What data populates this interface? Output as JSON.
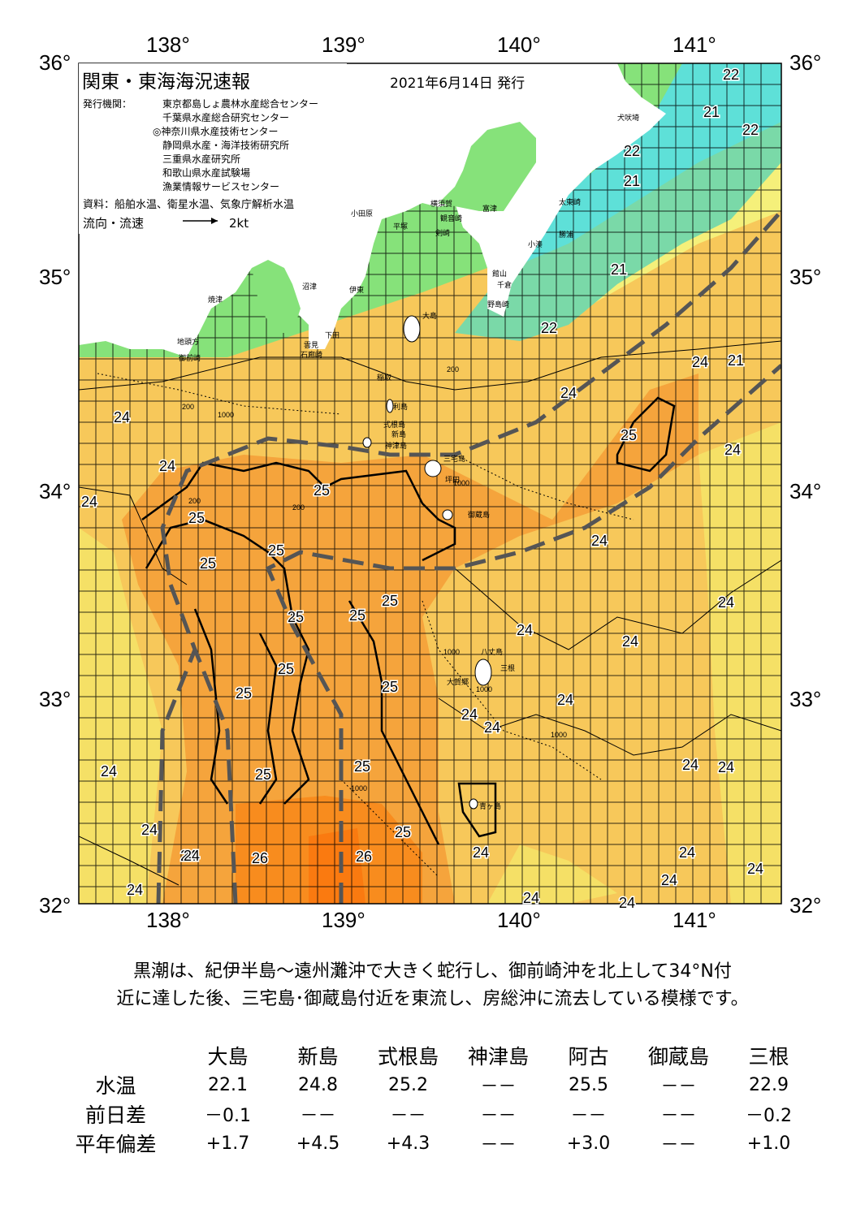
{
  "map": {
    "title": "関東・東海海況速報",
    "date": "2021年6月14日 発行",
    "issuers_label": "発行機関：",
    "issuers": [
      "東京都島しょ農林水産総合センター",
      "千葉県水産総合研究センター",
      "◎神奈川県水産技術センター",
      "静岡県水産・海洋技術研究所",
      "三重県水産研究所",
      "和歌山県水産試験場",
      "漁業情報サービスセンター"
    ],
    "source": "資料：船舶水温、衛星水温、気象庁解析水温",
    "flow_label": "流向・流速",
    "flow_scale": "2kt",
    "lon_labels": [
      "138°",
      "139°",
      "140°",
      "141°"
    ],
    "lat_labels": [
      "36°",
      "35°",
      "34°",
      "33°",
      "32°"
    ],
    "place_names": [
      "犬吠埼",
      "太東崎",
      "勝浦",
      "小湊",
      "館山",
      "千倉",
      "野島崎",
      "富津",
      "横須賀",
      "観音崎",
      "剣崎",
      "平塚",
      "小田原",
      "沼津",
      "伊東",
      "焼津",
      "稲取",
      "下田",
      "石廊崎",
      "雲見",
      "地頭方",
      "御前崎",
      "大島",
      "利島",
      "新島",
      "式根島",
      "神津島",
      "三宅島",
      "坪田",
      "御蔵島",
      "八丈島",
      "三根",
      "大賀郷",
      "青ヶ島"
    ],
    "isotherm_labels": [
      "22",
      "22",
      "21",
      "22",
      "21",
      "21",
      "21",
      "22",
      "24",
      "24",
      "24",
      "24",
      "25",
      "24",
      "24",
      "25",
      "25",
      "25",
      "25",
      "25",
      "24",
      "25",
      "25",
      "24",
      "25",
      "24",
      "25",
      "24",
      "25",
      "25",
      "24",
      "24",
      "24",
      "25",
      "24",
      "24",
      "24",
      "24",
      "24",
      "24",
      "25",
      "26",
      "26",
      "24",
      "24",
      "24",
      "24",
      "24",
      "24",
      "24",
      "24"
    ],
    "depth_labels": [
      "200",
      "200",
      "1000",
      "200",
      "200",
      "1000",
      "1000",
      "1000",
      "1000",
      "1000"
    ]
  },
  "summary": {
    "line1": "黒潮は、紀伊半島～遠州灘沖で大きく蛇行し、御前崎沖を北上して34°N付",
    "line2": "近に達した後、三宅島･御蔵島付近を東流し、房総沖に流去している模様です。"
  },
  "table": {
    "columns": [
      "大島",
      "新島",
      "式根島",
      "神津島",
      "阿古",
      "御蔵島",
      "三根"
    ],
    "rows": [
      {
        "label": "水温",
        "values": [
          "22.1",
          "24.8",
          "25.2",
          "－－",
          "25.5",
          "－－",
          "22.9"
        ]
      },
      {
        "label": "前日差",
        "values": [
          "－0.1",
          "－－",
          "－－",
          "－－",
          "－－",
          "－－",
          "－0.2"
        ]
      },
      {
        "label": "平年偏差",
        "values": [
          "+1.7",
          "+4.5",
          "+4.3",
          "－－",
          "+3.0",
          "－－",
          "+1.0"
        ]
      }
    ]
  },
  "colors": {
    "temp_21": "#5ee0d8",
    "temp_22": "#86e27a",
    "temp_23": "#f5f07a",
    "temp_24": "#f7c85a",
    "temp_25": "#f5a43c",
    "temp_26": "#f88c1e",
    "kuroshio_axis": "#555555"
  }
}
